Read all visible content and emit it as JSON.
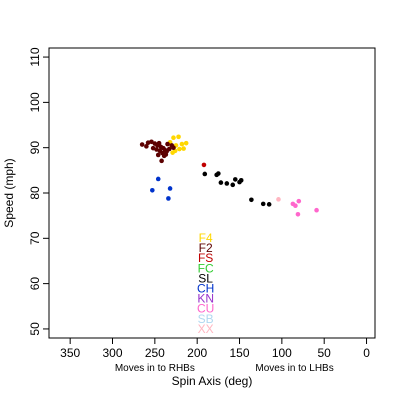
{
  "chart_data": {
    "type": "scatter",
    "title": "",
    "xlabel": "Spin Axis (deg)",
    "ylabel": "Speed (mph)",
    "xlim": [
      375,
      -10
    ],
    "ylim": [
      48,
      112
    ],
    "x_reversed": true,
    "grid": false,
    "x_ticks": [
      350,
      300,
      250,
      200,
      150,
      100,
      50,
      0
    ],
    "y_ticks": [
      50,
      60,
      70,
      80,
      90,
      100,
      110
    ],
    "annotations": [
      {
        "text": "Moves in to RHBs",
        "x": 250
      },
      {
        "text": "Moves in to LHBs",
        "x": 85
      }
    ],
    "legend": {
      "placement": "center-bottom",
      "entries": [
        {
          "label": "F4",
          "color": "#FFD700"
        },
        {
          "label": "F2",
          "color": "#5C0000"
        },
        {
          "label": "FS",
          "color": "#C00000"
        },
        {
          "label": "FC",
          "color": "#33CC33"
        },
        {
          "label": "SL",
          "color": "#000000"
        },
        {
          "label": "CH",
          "color": "#0033CC"
        },
        {
          "label": "KN",
          "color": "#9933CC"
        },
        {
          "label": "CU",
          "color": "#FF66CC"
        },
        {
          "label": "SB",
          "color": "#B0D8F0"
        },
        {
          "label": "XX",
          "color": "#FFB6C1"
        }
      ]
    },
    "series": [
      {
        "name": "F4",
        "color": "#FFD700",
        "points": [
          [
            228,
            92.2
          ],
          [
            222,
            92.4
          ],
          [
            232,
            91.2
          ],
          [
            225,
            90.5
          ],
          [
            218,
            90.8
          ],
          [
            213,
            91.0
          ],
          [
            221,
            89.7
          ],
          [
            226,
            89.3
          ],
          [
            230,
            90.2
          ],
          [
            216,
            89.8
          ],
          [
            229,
            88.9
          ]
        ]
      },
      {
        "name": "F2",
        "color": "#5C0000",
        "points": [
          [
            265,
            90.7
          ],
          [
            258,
            91.1
          ],
          [
            254,
            91.3
          ],
          [
            250,
            90.9
          ],
          [
            247,
            90.5
          ],
          [
            245,
            91.0
          ],
          [
            243,
            90.2
          ],
          [
            240,
            89.9
          ],
          [
            238,
            89.5
          ],
          [
            236,
            89.2
          ],
          [
            252,
            89.9
          ],
          [
            248,
            89.6
          ],
          [
            244,
            89.3
          ],
          [
            241,
            88.8
          ],
          [
            237,
            88.5
          ],
          [
            233,
            89.7
          ],
          [
            230,
            90.5
          ],
          [
            228,
            90.0
          ],
          [
            235,
            90.8
          ],
          [
            246,
            88.4
          ],
          [
            260,
            90.3
          ],
          [
            242,
            87.1
          ],
          [
            239,
            88.2
          ]
        ]
      },
      {
        "name": "SL",
        "color": "#000000",
        "points": [
          [
            191,
            84.2
          ],
          [
            177,
            84.0
          ],
          [
            175,
            84.3
          ],
          [
            172,
            82.3
          ],
          [
            165,
            82.1
          ],
          [
            158,
            81.8
          ],
          [
            155,
            83.0
          ],
          [
            150,
            82.4
          ],
          [
            148,
            82.8
          ],
          [
            136,
            78.5
          ],
          [
            122,
            77.6
          ],
          [
            115,
            77.5
          ]
        ]
      },
      {
        "name": "CH",
        "color": "#0033CC",
        "points": [
          [
            246,
            83.1
          ],
          [
            253,
            80.6
          ],
          [
            232,
            81.0
          ],
          [
            234,
            78.8
          ]
        ]
      },
      {
        "name": "CU",
        "color": "#FF66CC",
        "points": [
          [
            87,
            77.6
          ],
          [
            84,
            77.2
          ],
          [
            80,
            78.2
          ],
          [
            81,
            75.3
          ],
          [
            59,
            76.2
          ]
        ]
      },
      {
        "name": "FS",
        "color": "#C00000",
        "points": [
          [
            192,
            86.2
          ]
        ]
      },
      {
        "name": "XX",
        "color": "#FFB6C1",
        "points": [
          [
            104,
            78.6
          ]
        ]
      }
    ]
  }
}
